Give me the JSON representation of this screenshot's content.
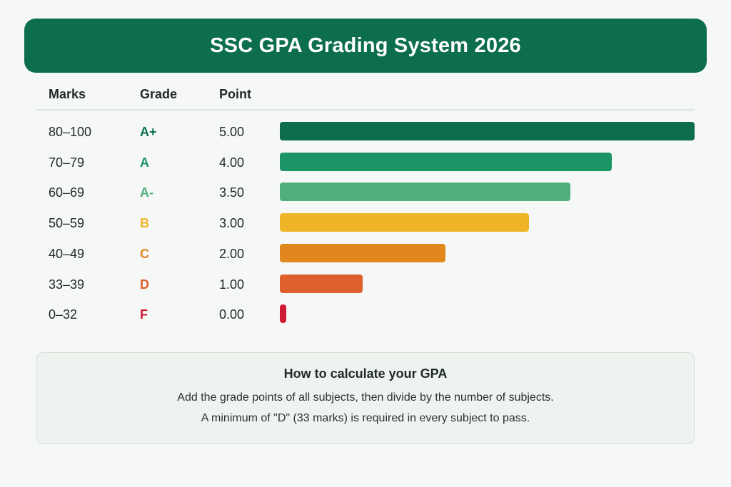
{
  "header": {
    "title": "SSC GPA Grading System 2026"
  },
  "table": {
    "col_marks": "Marks",
    "col_grade": "Grade",
    "col_point": "Point"
  },
  "chart_data": {
    "type": "bar",
    "orientation": "horizontal",
    "xlim": [
      0,
      5
    ],
    "grid": false,
    "categories": [
      "80–100",
      "70–79",
      "60–69",
      "50–59",
      "40–49",
      "33–39",
      "0–32"
    ],
    "grades": [
      "A+",
      "A",
      "A-",
      "B",
      "C",
      "D",
      "F"
    ],
    "values": [
      5.0,
      4.0,
      3.5,
      3.0,
      2.0,
      1.0,
      0.0
    ],
    "value_labels": [
      "5.00",
      "4.00",
      "3.50",
      "3.00",
      "2.00",
      "1.00",
      "0.00"
    ],
    "colors": [
      "#0c6e4f",
      "#1b9466",
      "#4fae7c",
      "#f0b429",
      "#e0881e",
      "#dc5f2c",
      "#cf1a35"
    ]
  },
  "info": {
    "title": "How to calculate your GPA",
    "line1": "Add the grade points of all subjects, then divide by the number of subjects.",
    "line2": "A minimum of \"D\" (33 marks) is required in every subject to pass."
  }
}
